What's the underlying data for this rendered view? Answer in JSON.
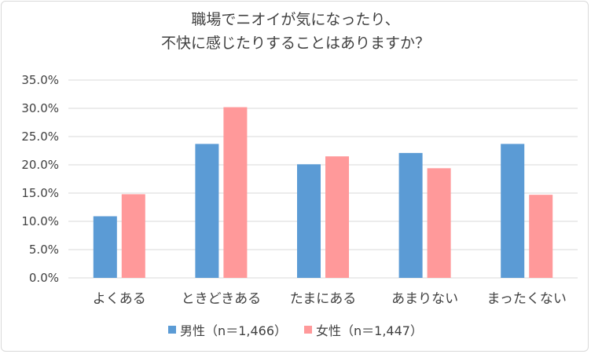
{
  "chart_data": {
    "type": "bar",
    "title_lines": [
      "職場でニオイが気になったり、",
      "不快に感じたりすることはありますか？"
    ],
    "categories": [
      "よくある",
      "ときどきある",
      "たまにある",
      "あまりない",
      "まったくない"
    ],
    "series": [
      {
        "name": "男性（n＝1,466）",
        "color": "#5b9bd5",
        "values": [
          10.9,
          23.7,
          20.1,
          22.1,
          23.7
        ]
      },
      {
        "name": "女性（n＝1,447）",
        "color": "#ff999a",
        "values": [
          14.8,
          30.2,
          21.5,
          19.4,
          14.7
        ]
      }
    ],
    "y_ticks": [
      "0.0%",
      "5.0%",
      "10.0%",
      "15.0%",
      "20.0%",
      "25.0%",
      "30.0%",
      "35.0%"
    ],
    "ylim": [
      0,
      35
    ],
    "grid": true,
    "legend_position": "bottom"
  }
}
